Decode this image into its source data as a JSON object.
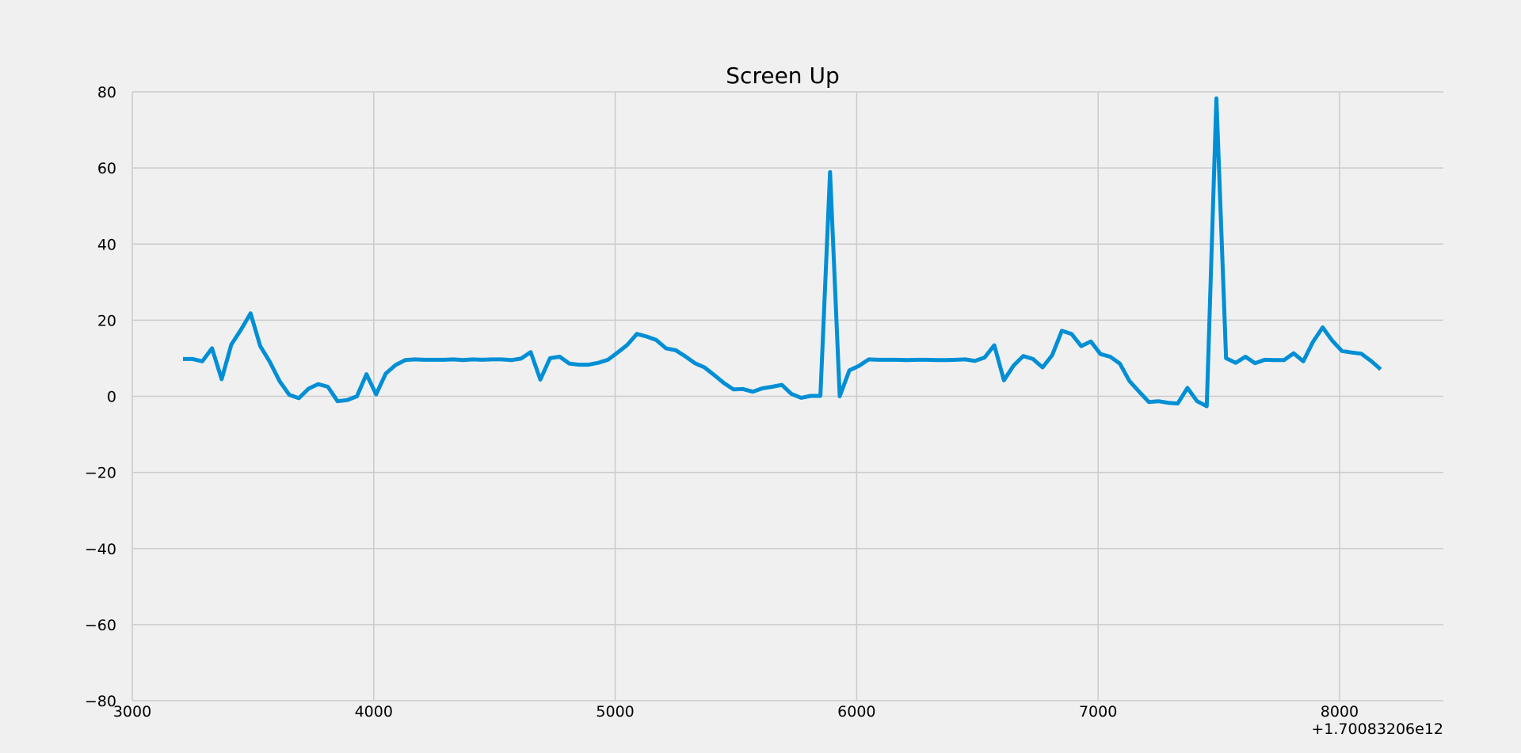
{
  "chart_data": {
    "type": "line",
    "title": "Screen Up",
    "xlabel": "",
    "ylabel": "",
    "x_offset_label": "+1.70083206e12",
    "xlim": [
      3000,
      8430
    ],
    "ylim": [
      -80,
      80
    ],
    "xticks": [
      3000,
      4000,
      5000,
      6000,
      7000,
      8000
    ],
    "yticks": [
      -80,
      -60,
      -40,
      -20,
      0,
      20,
      40,
      60,
      80
    ],
    "ytick_labels": [
      "−80",
      "−60",
      "−40",
      "−20",
      "0",
      "20",
      "40",
      "60",
      "80"
    ],
    "grid": true,
    "line_color": "#008fd5",
    "series": [
      {
        "x": [
          3210,
          3250,
          3290,
          3330,
          3370,
          3410,
          3450,
          3490,
          3530,
          3570,
          3610,
          3650,
          3690,
          3730,
          3770,
          3810,
          3850,
          3890,
          3930,
          3970,
          4010,
          4050,
          4090,
          4130,
          4170,
          4210,
          4250,
          4290,
          4330,
          4370,
          4410,
          4450,
          4490,
          4530,
          4570,
          4610,
          4650,
          4690,
          4730,
          4770,
          4810,
          4850,
          4890,
          4930,
          4970,
          5010,
          5050,
          5090,
          5130,
          5170,
          5210,
          5250,
          5290,
          5330,
          5370,
          5410,
          5450,
          5490,
          5530,
          5570,
          5610,
          5650,
          5690,
          5730,
          5770,
          5810,
          5850,
          5890,
          5930,
          5970,
          6010,
          6050,
          6090,
          6130,
          6170,
          6210,
          6250,
          6290,
          6330,
          6370,
          6410,
          6450,
          6490,
          6530,
          6570,
          6610,
          6650,
          6690,
          6730,
          6770,
          6810,
          6850,
          6890,
          6930,
          6970,
          7010,
          7050,
          7090,
          7130,
          7170,
          7210,
          7250,
          7290,
          7330,
          7370,
          7410,
          7450,
          7490,
          7530,
          7570,
          7610,
          7650,
          7690,
          7730,
          7770,
          7810,
          7850,
          7890,
          7930,
          7970,
          8010,
          8050,
          8090,
          8130,
          8170
        ],
        "y": [
          9.8,
          9.8,
          9.2,
          12.6,
          4.5,
          13.6,
          17.5,
          21.8,
          13.2,
          9.0,
          4.0,
          0.4,
          -0.5,
          2.0,
          3.2,
          2.5,
          -1.3,
          -1.0,
          0,
          5.8,
          0.5,
          6.0,
          8.2,
          9.5,
          9.7,
          9.6,
          9.6,
          9.6,
          9.7,
          9.5,
          9.7,
          9.6,
          9.7,
          9.7,
          9.5,
          9.9,
          11.6,
          4.4,
          10.0,
          10.4,
          8.6,
          8.3,
          8.3,
          8.8,
          9.6,
          11.5,
          13.5,
          16.4,
          15.7,
          14.8,
          12.6,
          12.1,
          10.5,
          8.7,
          7.6,
          5.6,
          3.5,
          1.8,
          1.9,
          1.2,
          2.1,
          2.5,
          3.0,
          0.6,
          -0.4,
          0.1,
          0.1,
          58.9,
          0,
          6.8,
          8.0,
          9.7,
          9.6,
          9.6,
          9.6,
          9.5,
          9.6,
          9.6,
          9.5,
          9.5,
          9.6,
          9.7,
          9.3,
          10.2,
          13.4,
          4.2,
          8.1,
          10.6,
          9.8,
          7.6,
          10.8,
          17.2,
          16.4,
          13.2,
          14.4,
          11.1,
          10.4,
          8.6,
          4.0,
          1.2,
          -1.5,
          -1.3,
          -1.7,
          -1.9,
          2.2,
          -1.3,
          -2.6,
          78.3,
          10.0,
          8.8,
          10.4,
          8.7,
          9.6,
          9.5,
          9.5,
          11.3,
          9.2,
          14.3,
          18.1,
          14.6,
          11.9,
          11.5,
          11.2,
          9.3,
          7.1
        ]
      }
    ]
  }
}
